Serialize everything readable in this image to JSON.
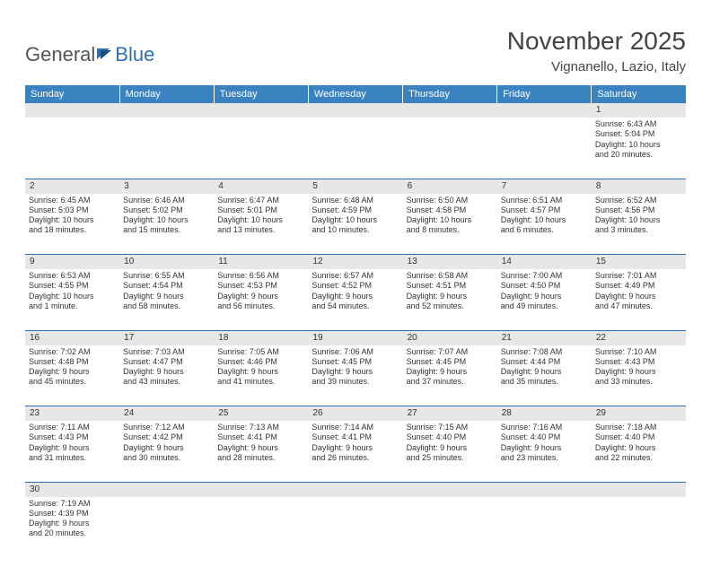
{
  "logo": {
    "text1": "General",
    "text2": "Blue"
  },
  "title": "November 2025",
  "location": "Vignanello, Lazio, Italy",
  "colors": {
    "header_bg": "#3b83c0",
    "header_text": "#ffffff",
    "grid_line": "#2f70b5",
    "daynum_bg": "#e7e7e7",
    "text": "#333333",
    "logo_blue": "#2f70b5",
    "logo_gray": "#555555",
    "page_bg": "#ffffff"
  },
  "daynames": [
    "Sunday",
    "Monday",
    "Tuesday",
    "Wednesday",
    "Thursday",
    "Friday",
    "Saturday"
  ],
  "weeks": [
    [
      null,
      null,
      null,
      null,
      null,
      null,
      {
        "n": "1",
        "sr": "Sunrise: 6:43 AM",
        "ss": "Sunset: 5:04 PM",
        "dl1": "Daylight: 10 hours",
        "dl2": "and 20 minutes."
      }
    ],
    [
      {
        "n": "2",
        "sr": "Sunrise: 6:45 AM",
        "ss": "Sunset: 5:03 PM",
        "dl1": "Daylight: 10 hours",
        "dl2": "and 18 minutes."
      },
      {
        "n": "3",
        "sr": "Sunrise: 6:46 AM",
        "ss": "Sunset: 5:02 PM",
        "dl1": "Daylight: 10 hours",
        "dl2": "and 15 minutes."
      },
      {
        "n": "4",
        "sr": "Sunrise: 6:47 AM",
        "ss": "Sunset: 5:01 PM",
        "dl1": "Daylight: 10 hours",
        "dl2": "and 13 minutes."
      },
      {
        "n": "5",
        "sr": "Sunrise: 6:48 AM",
        "ss": "Sunset: 4:59 PM",
        "dl1": "Daylight: 10 hours",
        "dl2": "and 10 minutes."
      },
      {
        "n": "6",
        "sr": "Sunrise: 6:50 AM",
        "ss": "Sunset: 4:58 PM",
        "dl1": "Daylight: 10 hours",
        "dl2": "and 8 minutes."
      },
      {
        "n": "7",
        "sr": "Sunrise: 6:51 AM",
        "ss": "Sunset: 4:57 PM",
        "dl1": "Daylight: 10 hours",
        "dl2": "and 6 minutes."
      },
      {
        "n": "8",
        "sr": "Sunrise: 6:52 AM",
        "ss": "Sunset: 4:56 PM",
        "dl1": "Daylight: 10 hours",
        "dl2": "and 3 minutes."
      }
    ],
    [
      {
        "n": "9",
        "sr": "Sunrise: 6:53 AM",
        "ss": "Sunset: 4:55 PM",
        "dl1": "Daylight: 10 hours",
        "dl2": "and 1 minute."
      },
      {
        "n": "10",
        "sr": "Sunrise: 6:55 AM",
        "ss": "Sunset: 4:54 PM",
        "dl1": "Daylight: 9 hours",
        "dl2": "and 58 minutes."
      },
      {
        "n": "11",
        "sr": "Sunrise: 6:56 AM",
        "ss": "Sunset: 4:53 PM",
        "dl1": "Daylight: 9 hours",
        "dl2": "and 56 minutes."
      },
      {
        "n": "12",
        "sr": "Sunrise: 6:57 AM",
        "ss": "Sunset: 4:52 PM",
        "dl1": "Daylight: 9 hours",
        "dl2": "and 54 minutes."
      },
      {
        "n": "13",
        "sr": "Sunrise: 6:58 AM",
        "ss": "Sunset: 4:51 PM",
        "dl1": "Daylight: 9 hours",
        "dl2": "and 52 minutes."
      },
      {
        "n": "14",
        "sr": "Sunrise: 7:00 AM",
        "ss": "Sunset: 4:50 PM",
        "dl1": "Daylight: 9 hours",
        "dl2": "and 49 minutes."
      },
      {
        "n": "15",
        "sr": "Sunrise: 7:01 AM",
        "ss": "Sunset: 4:49 PM",
        "dl1": "Daylight: 9 hours",
        "dl2": "and 47 minutes."
      }
    ],
    [
      {
        "n": "16",
        "sr": "Sunrise: 7:02 AM",
        "ss": "Sunset: 4:48 PM",
        "dl1": "Daylight: 9 hours",
        "dl2": "and 45 minutes."
      },
      {
        "n": "17",
        "sr": "Sunrise: 7:03 AM",
        "ss": "Sunset: 4:47 PM",
        "dl1": "Daylight: 9 hours",
        "dl2": "and 43 minutes."
      },
      {
        "n": "18",
        "sr": "Sunrise: 7:05 AM",
        "ss": "Sunset: 4:46 PM",
        "dl1": "Daylight: 9 hours",
        "dl2": "and 41 minutes."
      },
      {
        "n": "19",
        "sr": "Sunrise: 7:06 AM",
        "ss": "Sunset: 4:45 PM",
        "dl1": "Daylight: 9 hours",
        "dl2": "and 39 minutes."
      },
      {
        "n": "20",
        "sr": "Sunrise: 7:07 AM",
        "ss": "Sunset: 4:45 PM",
        "dl1": "Daylight: 9 hours",
        "dl2": "and 37 minutes."
      },
      {
        "n": "21",
        "sr": "Sunrise: 7:08 AM",
        "ss": "Sunset: 4:44 PM",
        "dl1": "Daylight: 9 hours",
        "dl2": "and 35 minutes."
      },
      {
        "n": "22",
        "sr": "Sunrise: 7:10 AM",
        "ss": "Sunset: 4:43 PM",
        "dl1": "Daylight: 9 hours",
        "dl2": "and 33 minutes."
      }
    ],
    [
      {
        "n": "23",
        "sr": "Sunrise: 7:11 AM",
        "ss": "Sunset: 4:43 PM",
        "dl1": "Daylight: 9 hours",
        "dl2": "and 31 minutes."
      },
      {
        "n": "24",
        "sr": "Sunrise: 7:12 AM",
        "ss": "Sunset: 4:42 PM",
        "dl1": "Daylight: 9 hours",
        "dl2": "and 30 minutes."
      },
      {
        "n": "25",
        "sr": "Sunrise: 7:13 AM",
        "ss": "Sunset: 4:41 PM",
        "dl1": "Daylight: 9 hours",
        "dl2": "and 28 minutes."
      },
      {
        "n": "26",
        "sr": "Sunrise: 7:14 AM",
        "ss": "Sunset: 4:41 PM",
        "dl1": "Daylight: 9 hours",
        "dl2": "and 26 minutes."
      },
      {
        "n": "27",
        "sr": "Sunrise: 7:15 AM",
        "ss": "Sunset: 4:40 PM",
        "dl1": "Daylight: 9 hours",
        "dl2": "and 25 minutes."
      },
      {
        "n": "28",
        "sr": "Sunrise: 7:16 AM",
        "ss": "Sunset: 4:40 PM",
        "dl1": "Daylight: 9 hours",
        "dl2": "and 23 minutes."
      },
      {
        "n": "29",
        "sr": "Sunrise: 7:18 AM",
        "ss": "Sunset: 4:40 PM",
        "dl1": "Daylight: 9 hours",
        "dl2": "and 22 minutes."
      }
    ],
    [
      {
        "n": "30",
        "sr": "Sunrise: 7:19 AM",
        "ss": "Sunset: 4:39 PM",
        "dl1": "Daylight: 9 hours",
        "dl2": "and 20 minutes."
      },
      null,
      null,
      null,
      null,
      null,
      null
    ]
  ]
}
